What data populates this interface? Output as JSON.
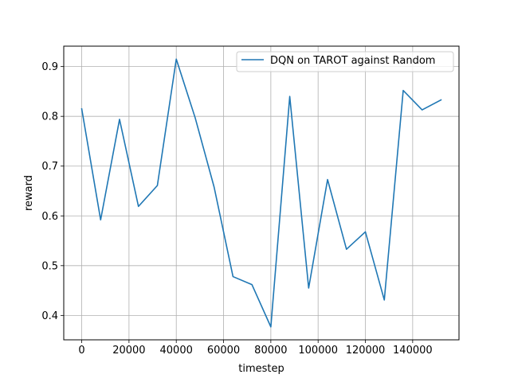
{
  "chart_data": {
    "type": "line",
    "title": "",
    "xlabel": "timestep",
    "ylabel": "reward",
    "xlim": [
      -7600,
      159600
    ],
    "ylim": [
      0.351,
      0.941
    ],
    "xticks": [
      0,
      20000,
      40000,
      60000,
      80000,
      100000,
      120000,
      140000
    ],
    "xtick_labels": [
      "0",
      "20000",
      "40000",
      "60000",
      "80000",
      "100000",
      "120000",
      "140000"
    ],
    "yticks": [
      0.4,
      0.5,
      0.6,
      0.7,
      0.8,
      0.9
    ],
    "ytick_labels": [
      "0.4",
      "0.5",
      "0.6",
      "0.7",
      "0.8",
      "0.9"
    ],
    "grid": true,
    "legend": {
      "placement": "top-right"
    },
    "series": [
      {
        "name": "DQN on TAROT against Random",
        "color": "#1f77b4",
        "x": [
          0,
          8000,
          16000,
          24000,
          32000,
          40000,
          48000,
          56000,
          64000,
          72000,
          80000,
          88000,
          96000,
          104000,
          112000,
          120000,
          128000,
          136000,
          144000,
          152000
        ],
        "y": [
          0.815,
          0.592,
          0.794,
          0.619,
          0.661,
          0.915,
          0.797,
          0.658,
          0.478,
          0.462,
          0.377,
          0.84,
          0.455,
          0.673,
          0.533,
          0.568,
          0.431,
          0.852,
          0.813,
          0.833
        ]
      }
    ]
  }
}
